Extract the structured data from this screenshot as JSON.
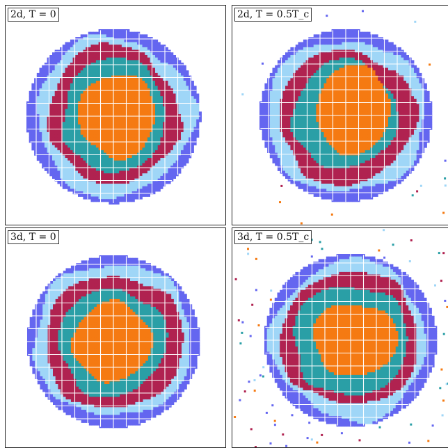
{
  "colors": {
    "core": "#f57a12",
    "teal": "#2a9fa6",
    "crimson": "#b02250",
    "light_blue": "#9fd6f7",
    "periwinkle": "#6466f0",
    "grid": "#ffffff"
  },
  "panels": [
    {
      "label": "2d, T = 0",
      "dim": "2d",
      "temperature_fraction_Tc": 0,
      "noise": "none"
    },
    {
      "label": "2d, T = 0.5T_c",
      "dim": "2d",
      "temperature_fraction_Tc": 0.5,
      "noise": "light"
    },
    {
      "label": "3d, T = 0",
      "dim": "3d",
      "temperature_fraction_Tc": 0,
      "noise": "none"
    },
    {
      "label": "3d, T = 0.5T_c",
      "dim": "3d",
      "temperature_fraction_Tc": 0.5,
      "noise": "heavy"
    }
  ]
}
